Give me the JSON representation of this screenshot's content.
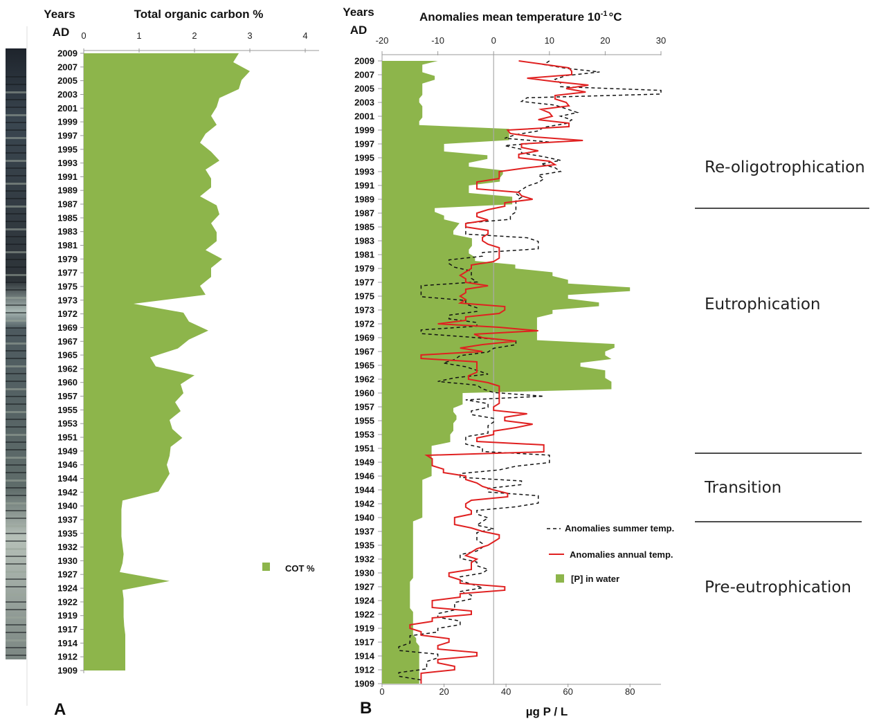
{
  "labels": {
    "years_heading": "Years",
    "ad_heading": "AD",
    "panel_a": "A",
    "panel_b": "B"
  },
  "phases": [
    "Re-oligotrophication",
    "Eutrophication",
    "Transition",
    "Pre-eutrophication"
  ],
  "colors": {
    "fill": "#8db54b",
    "annual_line": "#e02020",
    "summer_line": "#111111",
    "axis": "#999999",
    "zero_line": "#aaaaaa"
  },
  "chart_data": [
    {
      "type": "area",
      "title": "Total organic carbon %",
      "xlim": [
        0,
        4
      ],
      "x_ticks": [
        0,
        1,
        2,
        3,
        4
      ],
      "year_labels": [
        "2009",
        "2007",
        "2005",
        "2003",
        "2001",
        "1999",
        "1997",
        "1995",
        "1993",
        "1991",
        "1989",
        "1987",
        "1985",
        "1983",
        "1981",
        "1979",
        "1977",
        "1975",
        "1973",
        "1972",
        "1969",
        "1967",
        "1965",
        "1962",
        "1960",
        "1957",
        "1955",
        "1953",
        "1951",
        "1949",
        "1946",
        "1944",
        "1942",
        "1940",
        "1937",
        "1935",
        "1932",
        "1930",
        "1927",
        "1924",
        "1922",
        "1919",
        "1917",
        "1914",
        "1912",
        "1909"
      ],
      "legend": [
        "COT %"
      ],
      "series": [
        {
          "name": "COT %",
          "values": [
            2.8,
            2.7,
            3.0,
            2.85,
            2.8,
            2.45,
            2.4,
            2.3,
            2.4,
            2.2,
            2.1,
            2.3,
            2.45,
            2.2,
            2.3,
            2.3,
            2.1,
            2.4,
            2.45,
            2.3,
            2.4,
            2.4,
            2.2,
            2.5,
            2.3,
            2.3,
            2.1,
            2.2,
            0.9,
            1.8,
            1.9,
            2.25,
            1.9,
            1.7,
            1.2,
            1.3,
            2.0,
            1.75,
            1.8,
            1.65,
            1.75,
            1.55,
            1.6,
            1.78,
            1.57,
            1.55,
            1.5,
            1.55,
            1.45,
            1.35,
            0.7,
            0.68,
            0.68,
            0.68,
            0.68,
            0.7,
            0.72,
            0.7,
            0.65,
            1.55,
            0.7,
            0.72,
            0.72,
            0.72,
            0.73,
            0.75,
            0.75,
            0.75,
            0.75,
            0.75
          ]
        }
      ]
    },
    {
      "type": "line",
      "title": "Anomalies mean temperature 10",
      "title_superscript": "-1",
      "title_unit": "°C",
      "xlabel": "µg P / L",
      "xlim_top": [
        -20,
        30
      ],
      "x_ticks_top": [
        -20,
        -10,
        0,
        10,
        20,
        30
      ],
      "xlim_bottom": [
        0,
        90
      ],
      "x_ticks_bottom": [
        0,
        20,
        40,
        60,
        80
      ],
      "year_labels": [
        "2009",
        "2007",
        "2005",
        "2003",
        "2001",
        "1999",
        "1997",
        "1995",
        "1993",
        "1991",
        "1989",
        "1987",
        "1985",
        "1983",
        "1981",
        "1979",
        "1977",
        "1975",
        "1973",
        "1972",
        "1969",
        "1967",
        "1965",
        "1962",
        "1960",
        "1957",
        "1955",
        "1953",
        "1951",
        "1949",
        "1946",
        "1944",
        "1942",
        "1940",
        "1937",
        "1935",
        "1932",
        "1930",
        "1927",
        "1924",
        "1922",
        "1919",
        "1917",
        "1914",
        "1912",
        "1909"
      ],
      "legend": [
        "Anomalies summer temp.",
        "Anomalies annual temp.",
        "[P] in water"
      ],
      "series": [
        {
          "name": "[P] in water",
          "axis": "bottom",
          "values": [
            18,
            13,
            13,
            13,
            17,
            17,
            13,
            13,
            13,
            13,
            12,
            12,
            13,
            13,
            13,
            13,
            12,
            12,
            41,
            41,
            41,
            41,
            20,
            20,
            20,
            34,
            34,
            28,
            28,
            39,
            39,
            38,
            38,
            28,
            28,
            28,
            42,
            42,
            42,
            17,
            17,
            20,
            20,
            25,
            24,
            23,
            23,
            29,
            29,
            29,
            28,
            28,
            30,
            30,
            43,
            43,
            55,
            55,
            60,
            60,
            80,
            80,
            60,
            60,
            70,
            70,
            55,
            55,
            50,
            50,
            50,
            50,
            50,
            50,
            50,
            75,
            75,
            72,
            72,
            74,
            64,
            64,
            72,
            72,
            72,
            74,
            74,
            74,
            26,
            26,
            26,
            26,
            23,
            23,
            24,
            24,
            23,
            23,
            23,
            22,
            22,
            22,
            16,
            16,
            16,
            16,
            16,
            16,
            16,
            16,
            16,
            13,
            13,
            13,
            13,
            13,
            13,
            13,
            13,
            13,
            13,
            13,
            10,
            10,
            10,
            10,
            10,
            10,
            10,
            10,
            10,
            10,
            10,
            10,
            10,
            10,
            10,
            10,
            9,
            9,
            9,
            9,
            9,
            9,
            9,
            9,
            10,
            10,
            10,
            10,
            10,
            10,
            10,
            11,
            11,
            12,
            12,
            12,
            12,
            12,
            12,
            12,
            12,
            12,
            12,
            12
          ]
        },
        {
          "name": "Anomalies annual temp.",
          "axis": "top",
          "values": [
            4.5,
            9,
            13.5,
            14,
            14,
            6,
            11,
            17,
            13,
            16.5,
            11,
            11,
            13,
            13.5,
            8.5,
            10,
            10.5,
            8,
            13.5,
            13.5,
            2.5,
            3,
            7.5,
            16,
            5,
            5,
            8,
            4.5,
            4.5,
            10,
            11,
            5.5,
            1,
            1,
            1,
            -3,
            -3,
            -3,
            4.5,
            5,
            7,
            2,
            2,
            -1,
            -3,
            -3,
            -1,
            -5,
            -5,
            -1,
            -1,
            -2,
            -2,
            -1,
            1,
            1,
            1,
            1,
            0,
            -4,
            -4,
            -5,
            -6,
            -5,
            -5,
            -1,
            -5,
            -5,
            -6,
            -5,
            -6,
            2,
            2,
            1,
            -5,
            -5,
            -10,
            1,
            8,
            -3.5,
            -2,
            4,
            -2,
            -6,
            -2,
            -13,
            -13,
            -3,
            -3,
            -3,
            -3,
            -4.5,
            -4.5,
            -1,
            1,
            1,
            1,
            1,
            1,
            1,
            0,
            0,
            6,
            2,
            2,
            7,
            4,
            0,
            0,
            -3,
            -3,
            9,
            9,
            9,
            -12,
            -11,
            -11,
            -11,
            -9,
            -9,
            -5,
            -5,
            -3,
            -2,
            0,
            2.5,
            2.5,
            -4,
            -5,
            -5,
            -4,
            -4,
            -7,
            -7,
            -7,
            -4,
            -2,
            1,
            1,
            0,
            -1,
            -3,
            -4,
            -5,
            -3,
            -4,
            -4,
            -4,
            -8,
            -8,
            -6,
            -6,
            2,
            2,
            -6,
            -6,
            -11,
            -11,
            -11,
            -4,
            -4,
            -11,
            -11,
            -15,
            -15,
            -13,
            -13,
            -8,
            -8,
            -10,
            -10,
            -3,
            -3,
            -10,
            -10,
            -7,
            -7,
            -13,
            -13,
            -13,
            -13
          ]
        },
        {
          "name": "Anomalies summer temp.",
          "axis": "top",
          "values": [
            10,
            9,
            13,
            19,
            13,
            11,
            12,
            12,
            30,
            30,
            6,
            5,
            11,
            13,
            15,
            12,
            14,
            13,
            9,
            8,
            4,
            2,
            10,
            2,
            5,
            5,
            9,
            12,
            8.5,
            11,
            12,
            8,
            9,
            8,
            6,
            5,
            4,
            5,
            4,
            4,
            4,
            4,
            3,
            3,
            -5,
            -5,
            -5,
            -5,
            6,
            8,
            8,
            8,
            -2,
            -2,
            -8,
            -8,
            -7,
            -4,
            -4,
            -4,
            -3,
            -13,
            -13,
            -13,
            -13,
            -5,
            -5,
            -3,
            -3,
            -8,
            -8,
            -3,
            -3,
            -13,
            -13,
            -4,
            4,
            4,
            0,
            -1,
            -6,
            -7,
            -9,
            -5,
            -3,
            -1,
            -7,
            -10,
            -3,
            -2,
            0,
            9,
            -5,
            -1,
            -1,
            -4,
            -4,
            0,
            0,
            -1,
            -1,
            -1,
            -5,
            -5,
            -5,
            -2,
            -2,
            10,
            10,
            10,
            4,
            1,
            -6,
            -6,
            5,
            5,
            -1,
            -1,
            8,
            8,
            8,
            4,
            -3,
            -3,
            -1,
            -2,
            -3,
            0,
            -3,
            -3,
            -3,
            -2,
            -2,
            -3,
            -6,
            -6,
            -3,
            -3,
            -1,
            -2,
            -6,
            -6,
            -4,
            -2,
            -6,
            -4,
            -4,
            -7,
            -7,
            -7,
            -10,
            -10,
            -6,
            -6,
            -10,
            -10,
            -15,
            -15,
            -15,
            -17,
            -17,
            -10,
            -10,
            -12,
            -12,
            -12,
            -17,
            -17,
            -13,
            -13
          ]
        }
      ]
    }
  ]
}
